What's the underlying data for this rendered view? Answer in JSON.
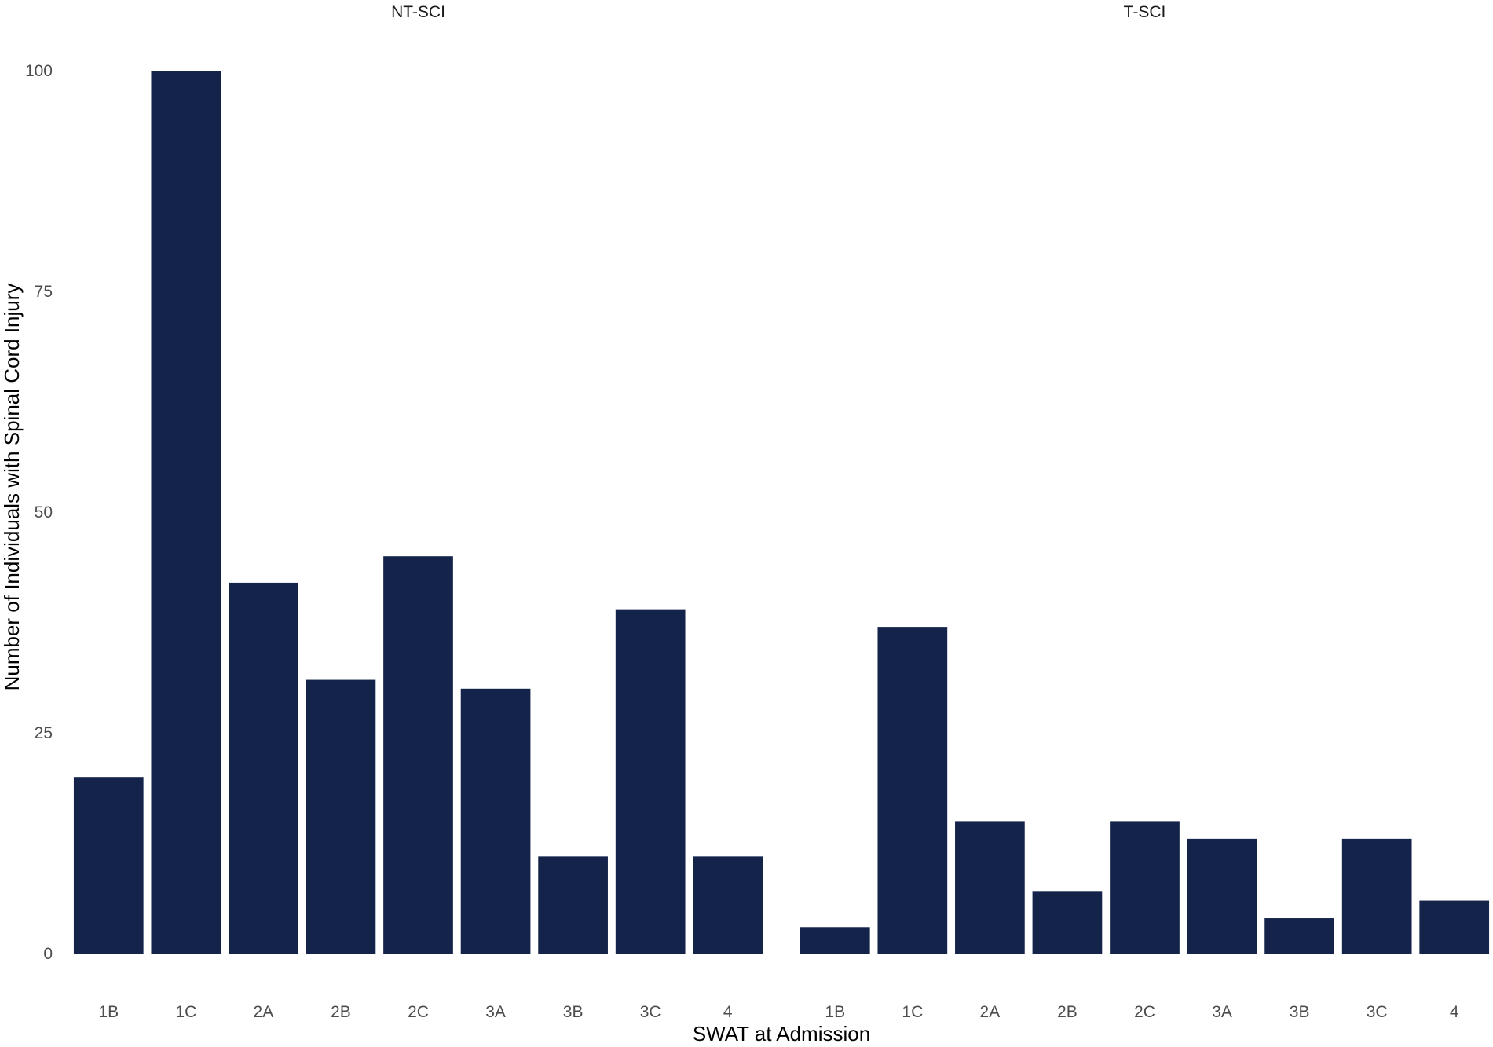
{
  "chart_data": {
    "type": "bar",
    "xlabel": "SWAT at Admission",
    "ylabel": "Number of Individuals with Spinal Cord Injury",
    "ylim": [
      0,
      100
    ],
    "yticks": [
      "0",
      "25",
      "50",
      "75",
      "100"
    ],
    "grid": false,
    "legend": "none",
    "bar_color": "#14234A",
    "facets": [
      {
        "title": "NT-SCI",
        "categories": [
          "1B",
          "1C",
          "2A",
          "2B",
          "2C",
          "3A",
          "3B",
          "3C",
          "4"
        ],
        "values": [
          20,
          100,
          42,
          31,
          45,
          30,
          11,
          39,
          11
        ]
      },
      {
        "title": "T-SCI",
        "categories": [
          "1B",
          "1C",
          "2A",
          "2B",
          "2C",
          "3A",
          "3B",
          "3C",
          "4"
        ],
        "values": [
          3,
          37,
          15,
          7,
          15,
          13,
          4,
          13,
          6
        ]
      }
    ]
  }
}
